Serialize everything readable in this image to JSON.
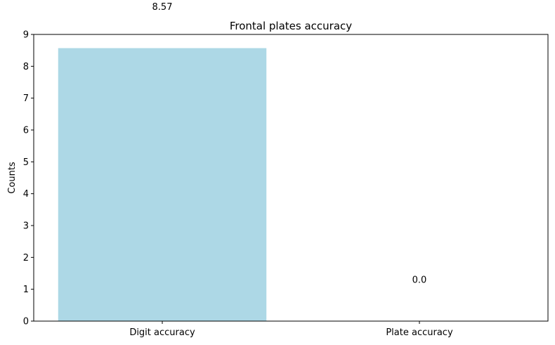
{
  "chart_data": {
    "type": "bar",
    "title": "Frontal plates accuracy",
    "xlabel": "",
    "ylabel": "Counts",
    "categories": [
      "Digit accuracy",
      "Plate accuracy"
    ],
    "values": [
      8.57,
      0.0
    ],
    "data_labels": [
      "8.57",
      "0.0"
    ],
    "ylim": [
      0,
      9
    ],
    "yticks": [
      "0",
      "1",
      "2",
      "3",
      "4",
      "5",
      "6",
      "7",
      "8",
      "9"
    ],
    "bar_color": "#add8e6",
    "grid": false,
    "legend": "none"
  }
}
